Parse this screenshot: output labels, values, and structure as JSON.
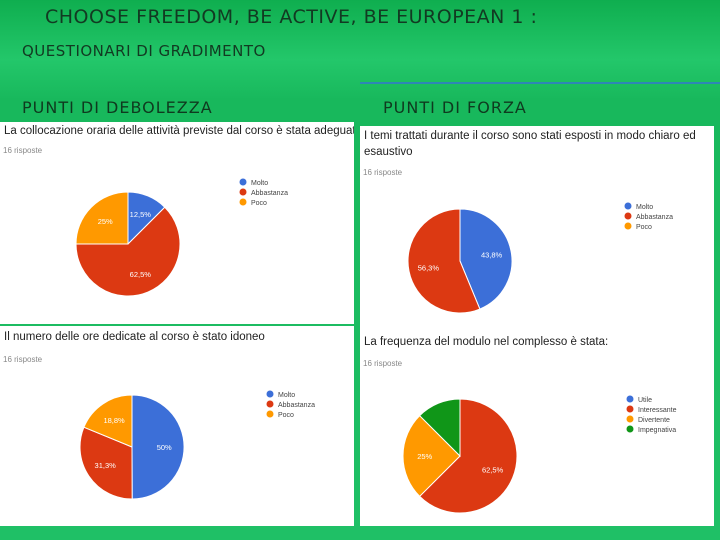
{
  "slide": {
    "title": "CHOOSE FREEDOM, BE ACTIVE, BE EUROPEAN 1 :",
    "subtitle": "QUESTIONARI DI GRADIMENTO",
    "left_heading": "PUNTI DI DEBOLEZZA",
    "right_heading": "PUNTI DI FORZA"
  },
  "colors": {
    "blue": "#3c6fd8",
    "red": "#dc3912",
    "orange": "#ff9900",
    "green": "#109618"
  },
  "chart_data": [
    {
      "type": "pie",
      "title": "La collocazione oraria delle attività previste dal corso è stata adeguata",
      "responses": "16 risposte",
      "legend_position": "right",
      "series": [
        {
          "name": "Molto",
          "value": 12.5,
          "label": "12,5%"
        },
        {
          "name": "Abbastanza",
          "value": 62.5,
          "label": "62,5%"
        },
        {
          "name": "Poco",
          "value": 25,
          "label": "25%"
        }
      ]
    },
    {
      "type": "pie",
      "title": "I temi trattati durante il corso sono stati esposti in modo chiaro ed esaustivo",
      "responses": "16 risposte",
      "legend_position": "right",
      "series": [
        {
          "name": "Molto",
          "value": 43.8,
          "label": "43,8%"
        },
        {
          "name": "Abbastanza",
          "value": 56.3,
          "label": "56,3%"
        },
        {
          "name": "Poco",
          "value": 0,
          "label": ""
        }
      ]
    },
    {
      "type": "pie",
      "title": "Il numero delle ore dedicate al corso è stato idoneo",
      "responses": "16 risposte",
      "legend_position": "right",
      "series": [
        {
          "name": "Molto",
          "value": 50,
          "label": "50%"
        },
        {
          "name": "Abbastanza",
          "value": 31.3,
          "label": "31,3%"
        },
        {
          "name": "Poco",
          "value": 18.8,
          "label": "18,8%"
        }
      ]
    },
    {
      "type": "pie",
      "title": "La frequenza del modulo nel complesso è stata:",
      "responses": "16 risposte",
      "legend_position": "right",
      "series": [
        {
          "name": "Utile",
          "value": 0,
          "label": ""
        },
        {
          "name": "Interessante",
          "value": 62.5,
          "label": "62,5%"
        },
        {
          "name": "Divertente",
          "value": 25,
          "label": "25%"
        },
        {
          "name": "Impegnativa",
          "value": 12.5,
          "label": ""
        }
      ]
    }
  ]
}
